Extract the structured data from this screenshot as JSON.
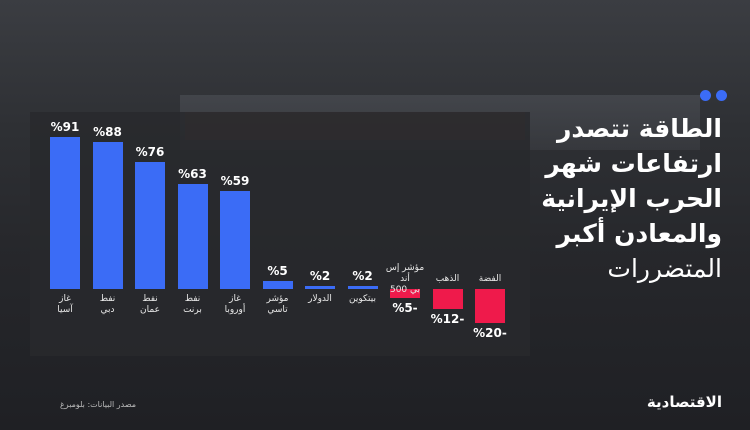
{
  "chart_data": {
    "type": "bar",
    "title": [
      "الطاقة تتصدر",
      "ارتفاعات شهر",
      "الحرب الإيرانية",
      "والمعادن أكبر",
      "المتضررات"
    ],
    "categories": [
      "غاز\nآسيا",
      "نفط\nدبي",
      "نفط\nعمان",
      "نفط\nبرنت",
      "غاز\nأوروبا",
      "مؤشر\nتاسي",
      "الدولار",
      "بيتكوين",
      "مؤشر إس أند\nبي 500",
      "الذهب",
      "الفضة"
    ],
    "values": [
      91,
      88,
      76,
      63,
      59,
      5,
      2,
      2,
      -5,
      -12,
      -20
    ],
    "value_labels": [
      "%91",
      "%88",
      "%76",
      "%63",
      "%59",
      "%5",
      "%2",
      "%2",
      "%5-",
      "%12-",
      "%20-"
    ],
    "positive_color": "#3b6cf6",
    "negative_color": "#ef1a4b",
    "ylim": [
      -25,
      100
    ],
    "source": "مصدر البيانات: بلومبرغ",
    "brand": "الاقتصادية"
  }
}
